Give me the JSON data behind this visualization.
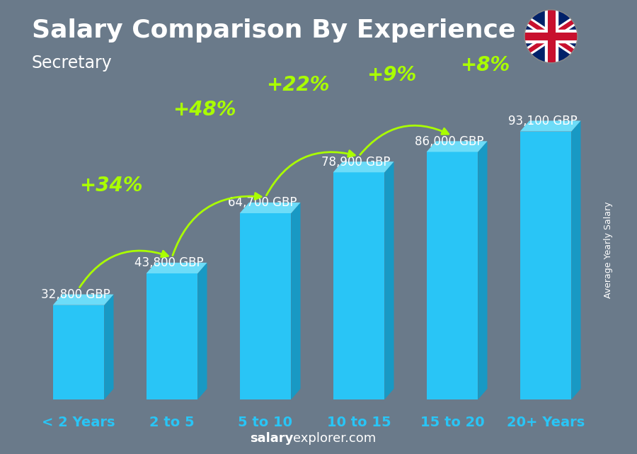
{
  "title": "Salary Comparison By Experience",
  "subtitle": "Secretary",
  "ylabel": "Average Yearly Salary",
  "footer_bold": "salary",
  "footer_normal": "explorer.com",
  "categories": [
    "< 2 Years",
    "2 to 5",
    "5 to 10",
    "10 to 15",
    "15 to 20",
    "20+ Years"
  ],
  "values": [
    32800,
    43800,
    64700,
    78900,
    86000,
    93100
  ],
  "labels": [
    "32,800 GBP",
    "43,800 GBP",
    "64,700 GBP",
    "78,900 GBP",
    "86,000 GBP",
    "93,100 GBP"
  ],
  "pct_labels": [
    "+34%",
    "+48%",
    "+22%",
    "+9%",
    "+8%"
  ],
  "bar_front": "#29c5f6",
  "bar_top": "#6ddcf8",
  "bar_side": "#1899c4",
  "bg_color": "#6a7a8a",
  "text_color": "#ffffff",
  "green_color": "#aaff00",
  "title_fontsize": 26,
  "subtitle_fontsize": 17,
  "label_fontsize": 12,
  "pct_fontsize": 20,
  "cat_fontsize": 14,
  "footer_fontsize": 13
}
